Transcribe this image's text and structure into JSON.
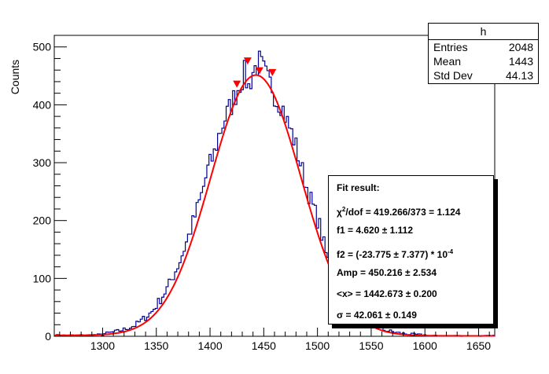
{
  "chart_data": {
    "type": "histogram",
    "title": "",
    "xlabel": "",
    "ylabel": "Counts",
    "xlim": [
      1255,
      1665
    ],
    "ylim": [
      0,
      520
    ],
    "x_ticks": [
      1300,
      1350,
      1400,
      1450,
      1500,
      1550,
      1600,
      1650
    ],
    "y_ticks": [
      0,
      100,
      200,
      300,
      400,
      500
    ],
    "colors": {
      "histogram": "#000099",
      "fit": "#ff0000",
      "markers": "#ff0000"
    },
    "fit": {
      "amp": 450.216,
      "mean": 1442.673,
      "sigma": 42.061,
      "f1": 4.62,
      "f2": -0.0023775
    },
    "peak_markers": [
      {
        "x": 1425,
        "y": 435
      },
      {
        "x": 1435,
        "y": 475
      },
      {
        "x": 1446,
        "y": 458
      },
      {
        "x": 1458,
        "y": 455
      }
    ],
    "histogram_noise": [
      {
        "x": 1302,
        "y": 6
      },
      {
        "x": 1318,
        "y": 14
      },
      {
        "x": 1330,
        "y": 24
      },
      {
        "x": 1346,
        "y": 52
      },
      {
        "x": 1360,
        "y": 98
      },
      {
        "x": 1372,
        "y": 150
      },
      {
        "x": 1384,
        "y": 220
      },
      {
        "x": 1392,
        "y": 268
      },
      {
        "x": 1398,
        "y": 320
      },
      {
        "x": 1404,
        "y": 335
      },
      {
        "x": 1408,
        "y": 372
      },
      {
        "x": 1414,
        "y": 395
      },
      {
        "x": 1420,
        "y": 410
      },
      {
        "x": 1426,
        "y": 440
      },
      {
        "x": 1432,
        "y": 470
      },
      {
        "x": 1436,
        "y": 415
      },
      {
        "x": 1440,
        "y": 465
      },
      {
        "x": 1446,
        "y": 495
      },
      {
        "x": 1450,
        "y": 470
      },
      {
        "x": 1454,
        "y": 445
      },
      {
        "x": 1458,
        "y": 440
      },
      {
        "x": 1462,
        "y": 410
      },
      {
        "x": 1466,
        "y": 420
      },
      {
        "x": 1472,
        "y": 385
      },
      {
        "x": 1478,
        "y": 365
      },
      {
        "x": 1484,
        "y": 320
      },
      {
        "x": 1490,
        "y": 275
      },
      {
        "x": 1496,
        "y": 245
      },
      {
        "x": 1502,
        "y": 215
      },
      {
        "x": 1508,
        "y": 150
      },
      {
        "x": 1516,
        "y": 100
      },
      {
        "x": 1530,
        "y": 58
      },
      {
        "x": 1546,
        "y": 28
      },
      {
        "x": 1560,
        "y": 14
      },
      {
        "x": 1580,
        "y": 6
      },
      {
        "x": 1600,
        "y": 3
      }
    ]
  },
  "stats": {
    "title": "h",
    "rows": [
      {
        "label": "Entries",
        "value": "2048"
      },
      {
        "label": "Mean",
        "value": "1443"
      },
      {
        "label": "Std Dev",
        "value": "44.13"
      }
    ]
  },
  "fit_box": {
    "heading": "Fit result:",
    "chi2_prefix": "χ",
    "chi2_sup": "2",
    "chi2_rest": "/dof = 419.266/373 = 1.124",
    "f1": "f1 = 4.620 ± 1.112",
    "f2_main": "f2 = (-23.775 ± 7.377) * 10",
    "f2_exp": "-4",
    "amp": "Amp = 450.216 ± 2.534",
    "mean": "<x> = 1442.673 ± 0.200",
    "sigma": "σ = 42.061 ± 0.149"
  }
}
